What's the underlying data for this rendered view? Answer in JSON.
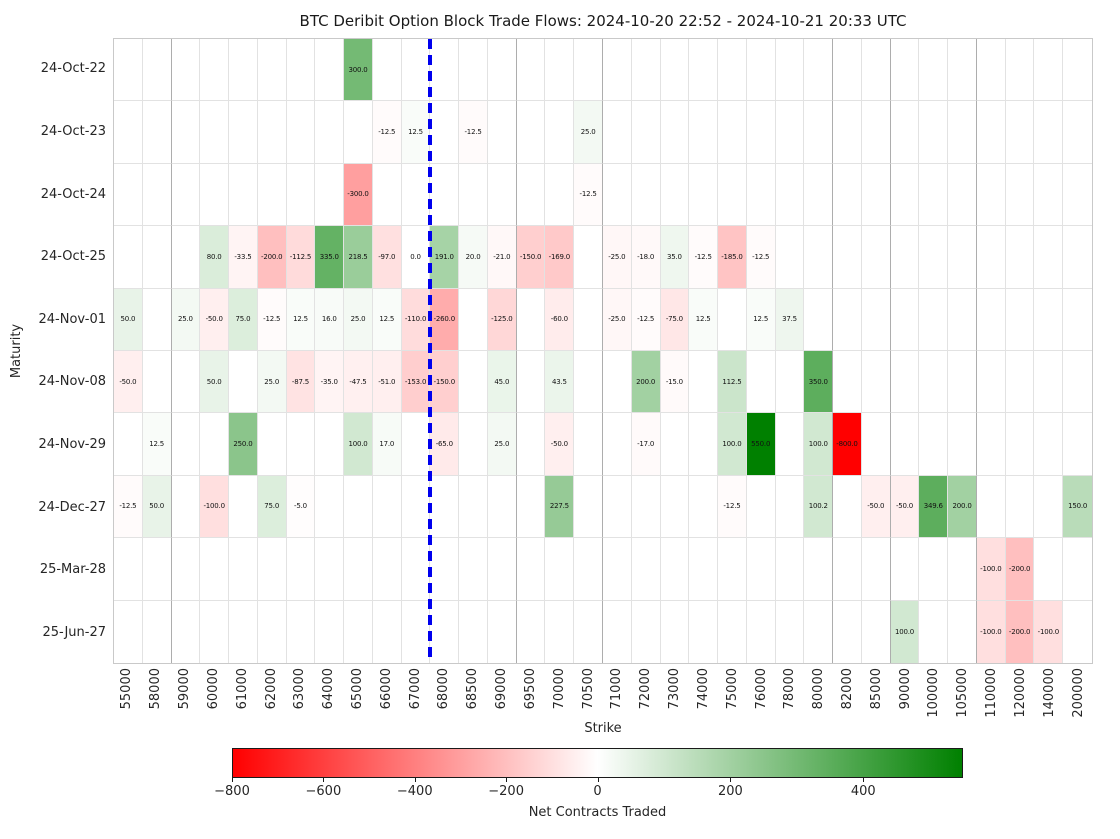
{
  "title": "BTC Deribit Option Block Trade Flows: 2024-10-20 22:52 - 2024-10-21 20:33 UTC",
  "axes": {
    "x_label": "Strike",
    "y_label": "Maturity"
  },
  "colorbar": {
    "label": "Net Contracts Traded",
    "ticks": [
      {
        "label": "−800",
        "value": -800
      },
      {
        "label": "−600",
        "value": -600
      },
      {
        "label": "−400",
        "value": -400
      },
      {
        "label": "−200",
        "value": -200
      },
      {
        "label": "0",
        "value": 0
      },
      {
        "label": "200",
        "value": 200
      },
      {
        "label": "400",
        "value": 400
      }
    ],
    "vmin": -800,
    "vcenter": 0,
    "vmax": 550,
    "neg_color": "#ff0000",
    "mid_color": "#ffffff",
    "pos_color": "#008000"
  },
  "spot_line": {
    "color": "#0000ee",
    "after_strike": 67000,
    "style": "dashed"
  },
  "chart_data": {
    "type": "heatmap",
    "x": [
      55000,
      58000,
      59000,
      60000,
      61000,
      62000,
      63000,
      64000,
      65000,
      66000,
      67000,
      68000,
      68500,
      69000,
      69500,
      70000,
      70500,
      71000,
      72000,
      73000,
      74000,
      75000,
      76000,
      78000,
      80000,
      82000,
      85000,
      90000,
      100000,
      105000,
      110000,
      120000,
      140000,
      200000
    ],
    "y": [
      "24-Oct-22",
      "24-Oct-23",
      "24-Oct-24",
      "24-Oct-25",
      "24-Nov-01",
      "24-Nov-08",
      "24-Nov-29",
      "24-Dec-27",
      "25-Mar-28",
      "25-Jun-27"
    ],
    "rows": [
      {
        "maturity": "24-Oct-22",
        "values": {
          "65000": 300.0
        }
      },
      {
        "maturity": "24-Oct-23",
        "values": {
          "66000": -12.5,
          "67000": 12.5,
          "68500": -12.5,
          "70500": 25.0
        }
      },
      {
        "maturity": "24-Oct-24",
        "values": {
          "65000": -300.0,
          "70500": -12.5
        }
      },
      {
        "maturity": "24-Oct-25",
        "values": {
          "60000": 80.0,
          "61000": -33.5,
          "62000": -200.0,
          "63000": -112.5,
          "64000": 335.0,
          "65000": 218.5,
          "66000": -97.0,
          "67000": 0.0,
          "68000": 191.0,
          "68500": 20.0,
          "69000": -21.0,
          "69500": -150.0,
          "70000": -169.0,
          "71000": -25.0,
          "72000": -18.0,
          "73000": 35.0,
          "74000": -12.5,
          "75000": -185.0,
          "76000": -12.5
        }
      },
      {
        "maturity": "24-Nov-01",
        "values": {
          "55000": 50.0,
          "59000": 25.0,
          "60000": -50.0,
          "61000": 75.0,
          "62000": -12.5,
          "63000": 12.5,
          "64000": 16.0,
          "65000": 25.0,
          "66000": 12.5,
          "67000": -110.0,
          "68000": -260.0,
          "69000": -125.0,
          "70000": -60.0,
          "71000": -25.0,
          "72000": -12.5,
          "73000": -75.0,
          "74000": 12.5,
          "76000": 12.5,
          "78000": 37.5
        }
      },
      {
        "maturity": "24-Nov-08",
        "values": {
          "55000": -50.0,
          "60000": 50.0,
          "62000": 25.0,
          "63000": -87.5,
          "64000": -35.0,
          "65000": -47.5,
          "66000": -51.0,
          "67000": -153.0,
          "68000": -150.0,
          "69000": 45.0,
          "70000": 43.5,
          "72000": 200.0,
          "73000": -15.0,
          "75000": 112.5,
          "80000": 350.0
        }
      },
      {
        "maturity": "24-Nov-29",
        "values": {
          "58000": 12.5,
          "61000": 250.0,
          "65000": 100.0,
          "66000": 17.0,
          "68000": -65.0,
          "69000": 25.0,
          "70000": -50.0,
          "72000": -17.0,
          "75000": 100.0,
          "76000": 550.0,
          "80000": 100.0,
          "82000": -800.0
        }
      },
      {
        "maturity": "24-Dec-27",
        "values": {
          "55000": -12.5,
          "58000": 50.0,
          "60000": -100.0,
          "62000": 75.0,
          "63000": -5.0,
          "70000": 227.5,
          "75000": -12.5,
          "80000": 100.2,
          "85000": -50.0,
          "90000": -50.0,
          "100000": 349.6,
          "105000": 200.0,
          "200000": 150.0
        }
      },
      {
        "maturity": "25-Mar-28",
        "values": {
          "110000": -100.0,
          "120000": -200.0
        }
      },
      {
        "maturity": "25-Jun-27",
        "values": {
          "90000": 100.0,
          "110000": -100.0,
          "120000": -200.0,
          "140000": -100.0
        }
      }
    ],
    "group_separators_after": [
      58000,
      69000,
      70500,
      80000,
      85000,
      105000
    ],
    "annotation_decimals": 1,
    "grid": true,
    "legend_position": "bottom-colorbar"
  }
}
